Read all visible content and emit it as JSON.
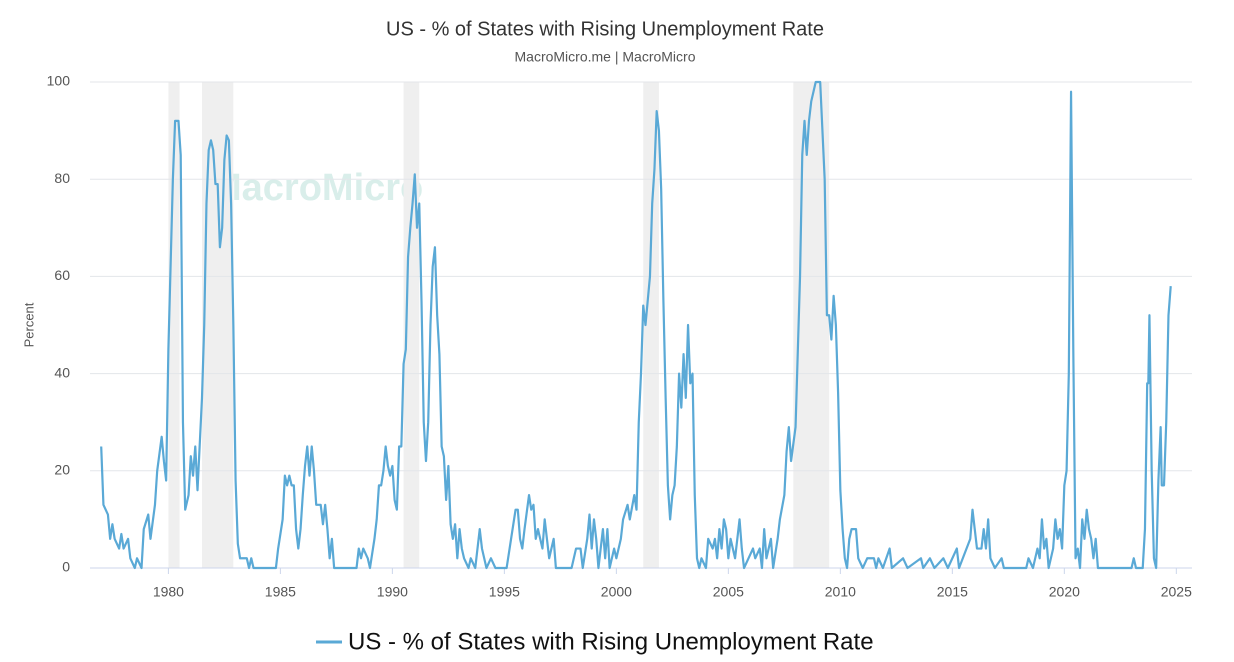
{
  "chart_data": {
    "type": "line",
    "title": "US - % of States with Rising Unemployment Rate",
    "subtitle": "MacroMicro.me | MacroMicro",
    "watermark": "MacroMicro",
    "y_label": "Percent",
    "xlim": [
      1976.5,
      2025.7
    ],
    "ylim": [
      0,
      100
    ],
    "xticks": [
      1980,
      1985,
      1990,
      1995,
      2000,
      2005,
      2010,
      2015,
      2020,
      2025
    ],
    "yticks": [
      0,
      20,
      40,
      60,
      80,
      100
    ],
    "grid": true,
    "recessions": [
      [
        1980.0,
        1980.5
      ],
      [
        1981.5,
        1982.9
      ],
      [
        1990.5,
        1991.2
      ],
      [
        2001.2,
        2001.9
      ],
      [
        2007.9,
        2009.5
      ]
    ],
    "x": [
      1977.0,
      1977.1,
      1977.3,
      1977.4,
      1977.5,
      1977.6,
      1977.8,
      1977.9,
      1978.0,
      1978.2,
      1978.3,
      1978.5,
      1978.6,
      1978.8,
      1978.9,
      1979.1,
      1979.2,
      1979.4,
      1979.5,
      1979.7,
      1979.8,
      1979.9,
      1980.0,
      1980.2,
      1980.3,
      1980.45,
      1980.55,
      1980.65,
      1980.75,
      1980.9,
      1981.0,
      1981.1,
      1981.2,
      1981.3,
      1981.5,
      1981.6,
      1981.7,
      1981.8,
      1981.9,
      1982.0,
      1982.1,
      1982.2,
      1982.3,
      1982.4,
      1982.5,
      1982.6,
      1982.7,
      1982.8,
      1982.9,
      1983.0,
      1983.1,
      1983.2,
      1983.5,
      1983.6,
      1983.7,
      1983.8,
      1984.8,
      1984.9,
      1985.1,
      1985.2,
      1985.3,
      1985.4,
      1985.5,
      1985.6,
      1985.7,
      1985.8,
      1985.9,
      1986.0,
      1986.1,
      1986.2,
      1986.3,
      1986.4,
      1986.5,
      1986.6,
      1986.8,
      1986.9,
      1987.0,
      1987.1,
      1987.2,
      1987.3,
      1987.4,
      1988.4,
      1988.5,
      1988.6,
      1988.7,
      1988.9,
      1989.0,
      1989.2,
      1989.3,
      1989.4,
      1989.5,
      1989.6,
      1989.7,
      1989.8,
      1989.9,
      1990.0,
      1990.1,
      1990.2,
      1990.3,
      1990.4,
      1990.5,
      1990.6,
      1990.7,
      1990.8,
      1990.9,
      1991.0,
      1991.1,
      1991.2,
      1991.3,
      1991.4,
      1991.5,
      1991.6,
      1991.7,
      1991.8,
      1991.9,
      1992.0,
      1992.1,
      1992.2,
      1992.3,
      1992.4,
      1992.5,
      1992.6,
      1992.7,
      1992.8,
      1992.9,
      1993.0,
      1993.1,
      1993.2,
      1993.4,
      1993.5,
      1993.7,
      1993.9,
      1994.0,
      1994.2,
      1994.4,
      1994.6,
      1995.1,
      1995.3,
      1995.5,
      1995.6,
      1995.7,
      1995.8,
      1995.9,
      1996.1,
      1996.2,
      1996.3,
      1996.4,
      1996.5,
      1996.7,
      1996.8,
      1996.9,
      1997.0,
      1997.2,
      1997.3,
      1998.0,
      1998.2,
      1998.4,
      1998.5,
      1998.7,
      1998.8,
      1998.9,
      1999.0,
      1999.1,
      1999.2,
      1999.4,
      1999.5,
      1999.6,
      1999.7,
      1999.9,
      2000.0,
      2000.2,
      2000.3,
      2000.5,
      2000.6,
      2000.8,
      2000.9,
      2001.0,
      2001.1,
      2001.2,
      2001.3,
      2001.4,
      2001.5,
      2001.6,
      2001.7,
      2001.8,
      2001.9,
      2002.0,
      2002.1,
      2002.2,
      2002.3,
      2002.4,
      2002.5,
      2002.6,
      2002.7,
      2002.8,
      2002.9,
      2003.0,
      2003.1,
      2003.2,
      2003.3,
      2003.4,
      2003.5,
      2003.6,
      2003.7,
      2003.8,
      2004.0,
      2004.1,
      2004.3,
      2004.4,
      2004.5,
      2004.6,
      2004.7,
      2004.8,
      2004.9,
      2005.0,
      2005.1,
      2005.3,
      2005.4,
      2005.5,
      2005.6,
      2005.7,
      2005.9,
      2006.1,
      2006.2,
      2006.4,
      2006.5,
      2006.6,
      2006.7,
      2006.9,
      2007.0,
      2007.2,
      2007.3,
      2007.5,
      2007.6,
      2007.7,
      2007.8,
      2008.0,
      2008.2,
      2008.3,
      2008.4,
      2008.5,
      2008.6,
      2008.7,
      2008.8,
      2008.9,
      2009.1,
      2009.2,
      2009.3,
      2009.4,
      2009.5,
      2009.6,
      2009.7,
      2009.8,
      2009.9,
      2010.0,
      2010.1,
      2010.2,
      2010.3,
      2010.4,
      2010.5,
      2010.7,
      2010.8,
      2011.0,
      2011.2,
      2011.5,
      2011.6,
      2011.7,
      2011.9,
      2012.2,
      2012.3,
      2012.8,
      2013.0,
      2013.6,
      2013.7,
      2014.0,
      2014.2,
      2014.6,
      2014.8,
      2015.2,
      2015.3,
      2015.8,
      2015.9,
      2016.0,
      2016.1,
      2016.3,
      2016.4,
      2016.5,
      2016.6,
      2016.7,
      2016.9,
      2017.2,
      2017.3,
      2018.3,
      2018.4,
      2018.6,
      2018.8,
      2018.9,
      2019.0,
      2019.1,
      2019.2,
      2019.3,
      2019.5,
      2019.6,
      2019.7,
      2019.8,
      2019.9,
      2020.0,
      2020.1,
      2020.2,
      2020.3,
      2020.4,
      2020.5,
      2020.6,
      2020.7,
      2020.8,
      2020.9,
      2021.0,
      2021.1,
      2021.2,
      2021.3,
      2021.4,
      2021.5,
      2023.0,
      2023.1,
      2023.2,
      2023.5,
      2023.6,
      2023.7,
      2023.75,
      2023.8,
      2023.9,
      2024.0,
      2024.1,
      2024.2,
      2024.3,
      2024.35,
      2024.45,
      2024.55,
      2024.65,
      2024.75
    ],
    "series": [
      {
        "name": "US - % of States with Rising Unemployment Rate",
        "color": "#5aa9d6",
        "values": [
          25,
          13,
          11,
          6,
          9,
          6,
          4,
          7,
          4,
          6,
          2,
          0,
          2,
          0,
          8,
          11,
          6,
          13,
          20,
          27,
          22,
          18,
          45,
          80,
          92,
          92,
          85,
          30,
          12,
          15,
          23,
          19,
          25,
          16,
          35,
          50,
          75,
          86,
          88,
          86,
          79,
          79,
          66,
          70,
          84,
          89,
          88,
          75,
          50,
          18,
          5,
          2,
          2,
          0,
          2,
          0,
          0,
          4,
          10,
          19,
          17,
          19,
          17,
          17,
          8,
          4,
          8,
          15,
          21,
          25,
          19,
          25,
          20,
          13,
          13,
          9,
          13,
          8,
          2,
          6,
          0,
          0,
          4,
          2,
          4,
          2,
          0,
          6,
          10,
          17,
          17,
          20,
          25,
          21,
          19,
          21,
          14,
          12,
          25,
          25,
          42,
          45,
          64,
          70,
          75,
          81,
          70,
          75,
          55,
          30,
          22,
          30,
          50,
          62,
          66,
          52,
          44,
          25,
          23,
          14,
          21,
          9,
          6,
          9,
          2,
          8,
          4,
          2,
          0,
          2,
          0,
          8,
          4,
          0,
          2,
          0,
          0,
          6,
          12,
          12,
          6,
          4,
          8,
          15,
          12,
          13,
          6,
          8,
          4,
          10,
          6,
          2,
          6,
          0,
          0,
          4,
          4,
          0,
          6,
          11,
          4,
          10,
          6,
          0,
          8,
          2,
          8,
          0,
          4,
          2,
          6,
          10,
          13,
          10,
          15,
          12,
          30,
          40,
          54,
          50,
          55,
          60,
          75,
          82,
          94,
          90,
          78,
          55,
          35,
          17,
          10,
          15,
          17,
          25,
          40,
          33,
          44,
          35,
          50,
          38,
          40,
          15,
          2,
          0,
          2,
          0,
          6,
          4,
          6,
          2,
          8,
          4,
          10,
          8,
          2,
          6,
          2,
          6,
          10,
          4,
          0,
          2,
          4,
          2,
          4,
          0,
          8,
          2,
          6,
          0,
          6,
          10,
          15,
          24,
          29,
          22,
          29,
          60,
          85,
          92,
          85,
          92,
          96,
          98,
          100,
          100,
          90,
          80,
          52,
          52,
          47,
          56,
          50,
          36,
          16,
          8,
          2,
          0,
          6,
          8,
          8,
          2,
          0,
          2,
          2,
          0,
          2,
          0,
          4,
          0,
          2,
          0,
          2,
          0,
          2,
          0,
          2,
          0,
          4,
          0,
          6,
          12,
          8,
          4,
          4,
          8,
          4,
          10,
          2,
          0,
          2,
          0,
          0,
          2,
          0,
          4,
          2,
          10,
          4,
          6,
          0,
          4,
          10,
          6,
          8,
          4,
          17,
          20,
          40,
          98,
          45,
          2,
          4,
          0,
          10,
          6,
          12,
          8,
          6,
          2,
          6,
          0,
          0,
          2,
          0,
          0,
          8,
          38,
          38,
          52,
          20,
          2,
          0,
          18,
          29,
          17,
          17,
          30,
          52,
          58
        ]
      }
    ]
  }
}
